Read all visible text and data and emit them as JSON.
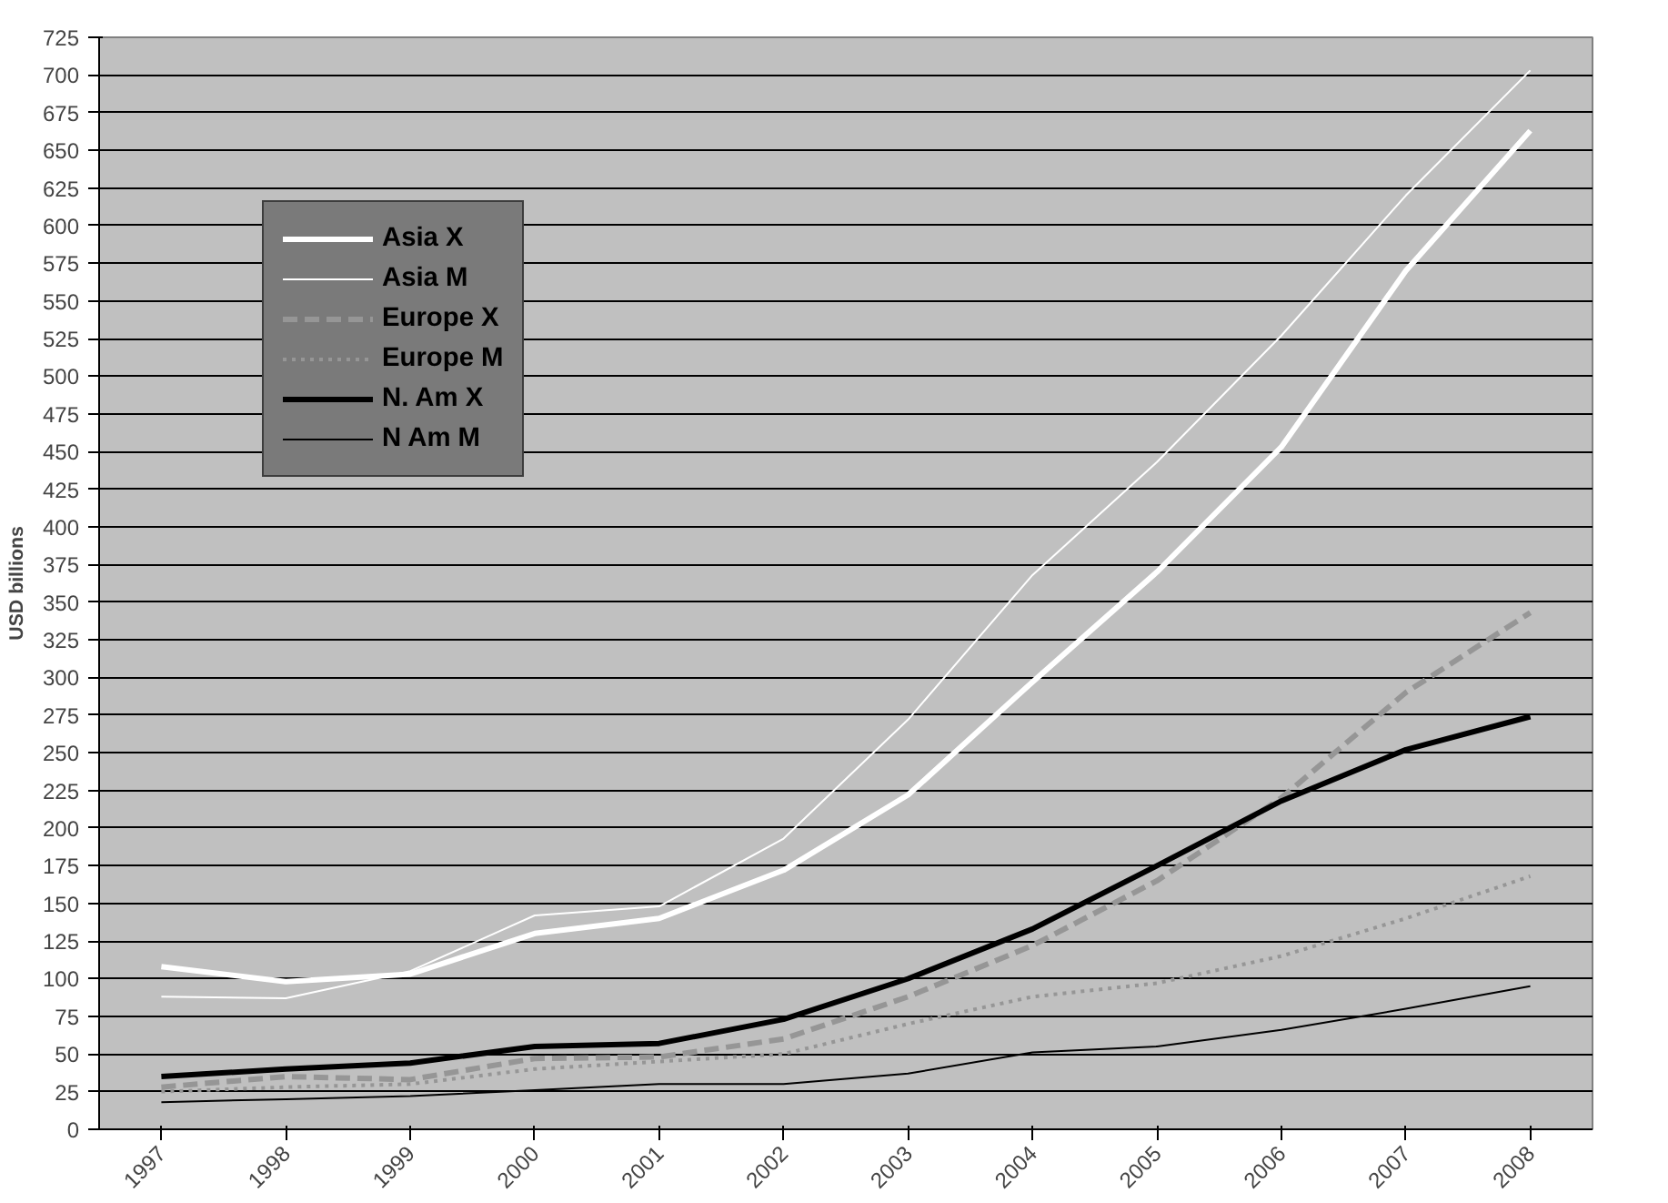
{
  "chart_data": {
    "type": "line",
    "ylabel": "USD billions",
    "categories": [
      "1997",
      "1998",
      "1999",
      "2000",
      "2001",
      "2002",
      "2003",
      "2004",
      "2005",
      "2006",
      "2007",
      "2008"
    ],
    "ylim": [
      0,
      725
    ],
    "yticks": [
      0,
      25,
      50,
      75,
      100,
      125,
      150,
      175,
      200,
      225,
      250,
      275,
      300,
      325,
      350,
      375,
      400,
      425,
      450,
      475,
      500,
      525,
      550,
      575,
      600,
      625,
      650,
      675,
      700,
      725
    ],
    "grid": "y",
    "legend": "top left",
    "series": [
      {
        "name": "Asia X",
        "color": "#ffffff",
        "line_style": "solid",
        "values": [
          108,
          98,
          103,
          130,
          140,
          172,
          222,
          297,
          370,
          453,
          570,
          663
        ]
      },
      {
        "name": "Asia M",
        "color": "#ffffff",
        "line_style": "solid",
        "values": [
          88,
          87,
          105,
          142,
          148,
          193,
          272,
          368,
          443,
          527,
          620,
          703
        ]
      },
      {
        "name": "Europe X",
        "color": "#969696",
        "line_style": "dashed",
        "values": [
          28,
          35,
          33,
          47,
          48,
          60,
          88,
          122,
          165,
          220,
          290,
          343
        ]
      },
      {
        "name": "Europe M",
        "color": "#969696",
        "line_style": "dotted",
        "values": [
          25,
          28,
          30,
          40,
          45,
          50,
          70,
          88,
          97,
          115,
          140,
          168
        ]
      },
      {
        "name": "N. Am X",
        "color": "#000000",
        "line_style": "solid",
        "values": [
          35,
          40,
          44,
          55,
          57,
          73,
          100,
          133,
          175,
          218,
          252,
          274
        ]
      },
      {
        "name": "N Am M",
        "color": "#000000",
        "line_style": "solid",
        "values": [
          18,
          20,
          22,
          26,
          30,
          30,
          37,
          51,
          55,
          66,
          80,
          95
        ]
      }
    ]
  }
}
